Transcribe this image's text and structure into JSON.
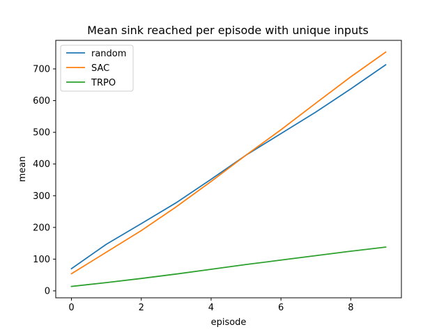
{
  "chart_data": {
    "type": "line",
    "title": "Mean sink reached per episode with unique inputs",
    "xlabel": "episode",
    "ylabel": "mean",
    "x": [
      0,
      1,
      2,
      3,
      4,
      5,
      6,
      7,
      8,
      9
    ],
    "xlim": [
      -0.45,
      9.45
    ],
    "ylim": [
      -22,
      790
    ],
    "xticks": [
      0,
      2,
      4,
      6,
      8
    ],
    "yticks": [
      0,
      100,
      200,
      300,
      400,
      500,
      600,
      700
    ],
    "grid": false,
    "legend_position": "upper-left",
    "series": [
      {
        "name": "random",
        "color": "#1f77b4",
        "values": [
          70,
          147,
          212,
          278,
          352,
          428,
          496,
          564,
          637,
          713
        ]
      },
      {
        "name": "SAC",
        "color": "#ff7f0e",
        "values": [
          54,
          122,
          190,
          265,
          345,
          428,
          508,
          592,
          675,
          753
        ]
      },
      {
        "name": "TRPO",
        "color": "#2ca02c",
        "values": [
          14,
          26,
          39,
          53,
          68,
          83,
          97,
          111,
          125,
          138
        ]
      }
    ]
  }
}
